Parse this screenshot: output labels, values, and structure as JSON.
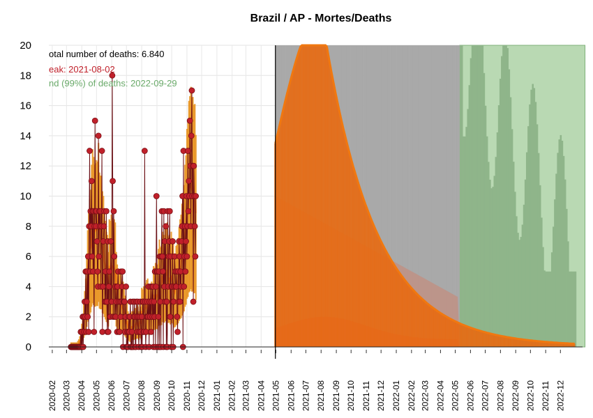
{
  "chart_data": {
    "type": "bar",
    "title": "Brazil / AP - Mortes/Deaths",
    "xlabel": "",
    "ylabel": "",
    "ylim": [
      0,
      20
    ],
    "yticks": [
      0,
      2,
      4,
      6,
      8,
      10,
      12,
      14,
      16,
      18,
      20
    ],
    "xrange": [
      "2020-01-25",
      "2023-01-15"
    ],
    "grid": true,
    "x_tick_labels": [
      "2020-02",
      "2020-03",
      "2020-04",
      "2020-05",
      "2020-06",
      "2020-07",
      "2020-08",
      "2020-09",
      "2020-10",
      "2020-11",
      "2020-12",
      "2021-01",
      "2021-02",
      "2021-03",
      "2021-04",
      "2021-05",
      "2021-06",
      "2021-07",
      "2021-08",
      "2021-09",
      "2021-10",
      "2021-11",
      "2021-12",
      "2022-01",
      "2022-02",
      "2022-03",
      "2022-04",
      "2022-05",
      "2022-06",
      "2022-07",
      "2022-08",
      "2022-09",
      "2022-10",
      "2022-11",
      "2022-12"
    ],
    "annotations": {
      "total": "otal number of deaths: 6.840",
      "peak": "eak: 2021-08-02",
      "end": "nd (99%) of deaths: 2022-09-29"
    },
    "annotation_colors": {
      "total": "#000000",
      "peak": "#c0202a",
      "end": "#6aaa6a"
    },
    "observed_end_date": "2021-04-30",
    "observed_deaths": {
      "start": "2020-03-10",
      "values": [
        0,
        0,
        0,
        0,
        0,
        0,
        0,
        0,
        0,
        0,
        0,
        0,
        0,
        0,
        0,
        0,
        0,
        0,
        0,
        0,
        1,
        0,
        1,
        0,
        2,
        0,
        2,
        1,
        3,
        2,
        5,
        1,
        3,
        5,
        2,
        6,
        1,
        8,
        13,
        5,
        9,
        8,
        11,
        6,
        9,
        5,
        9,
        1,
        8,
        15,
        9,
        8,
        9,
        7,
        5,
        4,
        14,
        6,
        9,
        8,
        9,
        4,
        8,
        13,
        1,
        4,
        7,
        8,
        9,
        3,
        5,
        3,
        9,
        3,
        1,
        7,
        1,
        4,
        5,
        2,
        2,
        7,
        3,
        3,
        18,
        11,
        2,
        9,
        6,
        2,
        4,
        2,
        3,
        4,
        1,
        4,
        5,
        3,
        1,
        1,
        3,
        2,
        5,
        3,
        4,
        5,
        0,
        3,
        3,
        3,
        1,
        2,
        4,
        0,
        0,
        1,
        0,
        1,
        2,
        1,
        2,
        3,
        0,
        0,
        1,
        0,
        3,
        0,
        2,
        3,
        2,
        0,
        0,
        3,
        2,
        1,
        3,
        2,
        0,
        1,
        2,
        3,
        1,
        0,
        2,
        0,
        3,
        3,
        1,
        1,
        13,
        3,
        0,
        1,
        2,
        3,
        2,
        2,
        4,
        0,
        3,
        2,
        4,
        1,
        3,
        4,
        2,
        4,
        0,
        3,
        2,
        5,
        0,
        4,
        10,
        5,
        5,
        0,
        2,
        5,
        0,
        6,
        3,
        0,
        6,
        9,
        6,
        5,
        0,
        9,
        4,
        7,
        3,
        8,
        0,
        3,
        0,
        9,
        4,
        6,
        7,
        9,
        2,
        6,
        0,
        4,
        4,
        7,
        0,
        3,
        4,
        6,
        5,
        4,
        4,
        5,
        2,
        1,
        5,
        3,
        7,
        6,
        3,
        5,
        4,
        7,
        8,
        10,
        0,
        13,
        4,
        6,
        8,
        5,
        7,
        10,
        6,
        8,
        13,
        9,
        11,
        10,
        15,
        12,
        8,
        14,
        17,
        10,
        12,
        3,
        12,
        10,
        8,
        6,
        10
      ]
    },
    "series": [
      {
        "name": "observed",
        "color": "#b22222"
      },
      {
        "name": "fit",
        "color": "#f07810"
      },
      {
        "name": "projection",
        "color": "#e06a10"
      },
      {
        "name": "uncertainty",
        "color": "#aaaaaa"
      },
      {
        "name": "end band",
        "color": "#a8d0a0"
      }
    ]
  }
}
